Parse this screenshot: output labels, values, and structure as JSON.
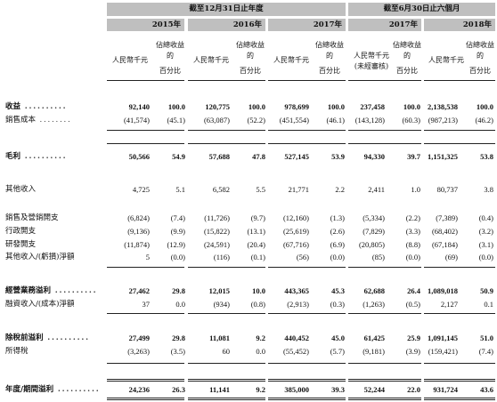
{
  "header": {
    "period_dec": "截至12月31日止年度",
    "period_jun": "截至6月30日止六個月"
  },
  "years": [
    "2015年",
    "2016年",
    "2017年",
    "2017年",
    "2018年"
  ],
  "col_headers": {
    "amount": "人民幣千元",
    "amount_unaudited": "人民幣千元\n(未經審核)",
    "pct_line1": "佔總收益的",
    "pct_line2": "百分比"
  },
  "rows": [
    {
      "label": "收益",
      "bold": true,
      "values": [
        "92,140",
        "100.0",
        "120,775",
        "100.0",
        "978,699",
        "100.0",
        "237,458",
        "100.0",
        "2,138,538",
        "100.0"
      ]
    },
    {
      "label": "銷售成本",
      "bold": false,
      "values": [
        "(41,574)",
        "(45.1)",
        "(63,087)",
        "(52.2)",
        "(451,554)",
        "(46.1)",
        "(143,128)",
        "(60.3)",
        "(987,213)",
        "(46.2)"
      ]
    },
    {
      "label": "毛利",
      "bold": true,
      "values": [
        "50,566",
        "54.9",
        "57,688",
        "47.8",
        "527,145",
        "53.9",
        "94,330",
        "39.7",
        "1,151,325",
        "53.8"
      ]
    },
    {
      "label": "其他收入",
      "bold": false,
      "values": [
        "4,725",
        "5.1",
        "6,582",
        "5.5",
        "21,771",
        "2.2",
        "2,411",
        "1.0",
        "80,737",
        "3.8"
      ]
    },
    {
      "label": "銷售及營銷開支",
      "bold": false,
      "values": [
        "(6,824)",
        "(7.4)",
        "(11,726)",
        "(9.7)",
        "(12,160)",
        "(1.3)",
        "(5,334)",
        "(2.2)",
        "(7,389)",
        "(0.4)"
      ]
    },
    {
      "label": "行政開支",
      "bold": false,
      "values": [
        "(9,136)",
        "(9.9)",
        "(15,822)",
        "(13.1)",
        "(25,619)",
        "(2.6)",
        "(7,829)",
        "(3.3)",
        "(68,402)",
        "(3.2)"
      ]
    },
    {
      "label": "研發開支",
      "bold": false,
      "values": [
        "(11,874)",
        "(12.9)",
        "(24,591)",
        "(20.4)",
        "(67,716)",
        "(6.9)",
        "(20,805)",
        "(8.8)",
        "(67,184)",
        "(3.1)"
      ]
    },
    {
      "label": "其他收入/(虧損)淨額",
      "bold": false,
      "values": [
        "5",
        "(0.0)",
        "(116)",
        "(0.1)",
        "(56)",
        "(0.0)",
        "(85)",
        "(0.0)",
        "(69)",
        "(0.0)"
      ]
    },
    {
      "label": "經營業務溢利",
      "bold": true,
      "values": [
        "27,462",
        "29.8",
        "12,015",
        "10.0",
        "443,365",
        "45.3",
        "62,688",
        "26.4",
        "1,089,018",
        "50.9"
      ]
    },
    {
      "label": "融資收入/(成本)淨額",
      "bold": false,
      "values": [
        "37",
        "0.0",
        "(934)",
        "(0.8)",
        "(2,913)",
        "(0.3)",
        "(1,263)",
        "(0.5)",
        "2,127",
        "0.1"
      ]
    },
    {
      "label": "除稅前溢利",
      "bold": true,
      "values": [
        "27,499",
        "29.8",
        "11,081",
        "9.2",
        "440,452",
        "45.0",
        "61,425",
        "25.9",
        "1,091,145",
        "51.0"
      ]
    },
    {
      "label": "所得稅",
      "bold": false,
      "values": [
        "(3,263)",
        "(3.5)",
        "60",
        "0.0",
        "(55,452)",
        "(5.7)",
        "(9,181)",
        "(3.9)",
        "(159,421)",
        "(7.4)"
      ]
    },
    {
      "label": "年度/期間溢利",
      "bold": true,
      "values": [
        "24,236",
        "26.3",
        "11,141",
        "9.2",
        "385,000",
        "39.3",
        "52,244",
        "22.0",
        "931,724",
        "43.6"
      ]
    }
  ]
}
